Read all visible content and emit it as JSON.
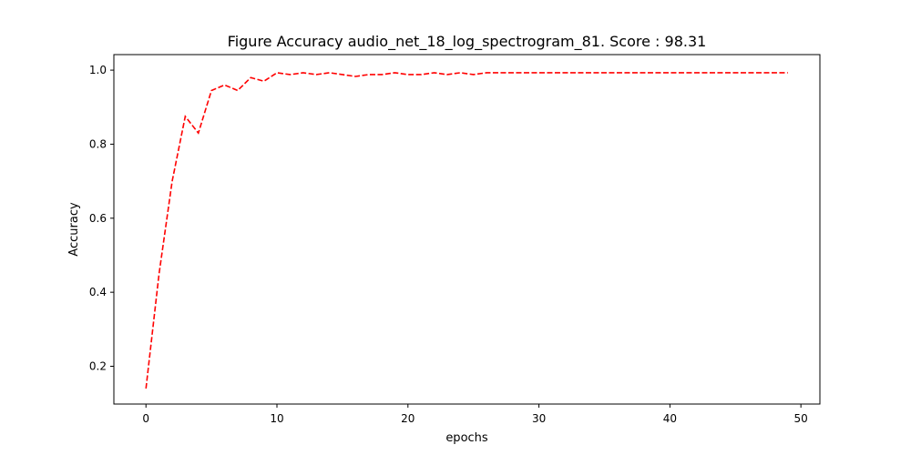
{
  "chart_data": {
    "type": "line",
    "title": "Figure Accuracy audio_net_18_log_spectrogram_81. Score : 98.31",
    "xlabel": "epochs",
    "ylabel": "Accuracy",
    "xlim": [
      -2.45,
      51.45
    ],
    "ylim": [
      0.098,
      1.042
    ],
    "xticks": [
      0,
      10,
      20,
      30,
      40,
      50
    ],
    "xtick_labels": [
      "0",
      "10",
      "20",
      "30",
      "40",
      "50"
    ],
    "yticks": [
      0.2,
      0.4,
      0.6,
      0.8,
      1.0
    ],
    "ytick_labels": [
      "0.2",
      "0.4",
      "0.6",
      "0.8",
      "1.0"
    ],
    "grid": false,
    "series": [
      {
        "color": "#ff0000",
        "line_style": "dashed",
        "x": [
          0,
          1,
          2,
          3,
          4,
          5,
          6,
          7,
          8,
          9,
          10,
          11,
          12,
          13,
          14,
          15,
          16,
          17,
          18,
          19,
          20,
          21,
          22,
          23,
          24,
          25,
          26,
          27,
          28,
          29,
          30,
          31,
          32,
          33,
          34,
          35,
          36,
          37,
          38,
          39,
          40,
          41,
          42,
          43,
          44,
          45,
          46,
          47,
          48,
          49
        ],
        "y": [
          0.14,
          0.45,
          0.7,
          0.875,
          0.83,
          0.945,
          0.96,
          0.945,
          0.98,
          0.97,
          0.993,
          0.988,
          0.993,
          0.988,
          0.993,
          0.988,
          0.983,
          0.988,
          0.988,
          0.993,
          0.988,
          0.988,
          0.993,
          0.988,
          0.993,
          0.988,
          0.993,
          0.993,
          0.993,
          0.993,
          0.993,
          0.993,
          0.993,
          0.993,
          0.993,
          0.993,
          0.993,
          0.993,
          0.993,
          0.993,
          0.993,
          0.993,
          0.993,
          0.993,
          0.993,
          0.993,
          0.993,
          0.993,
          0.993,
          0.993
        ]
      }
    ]
  }
}
